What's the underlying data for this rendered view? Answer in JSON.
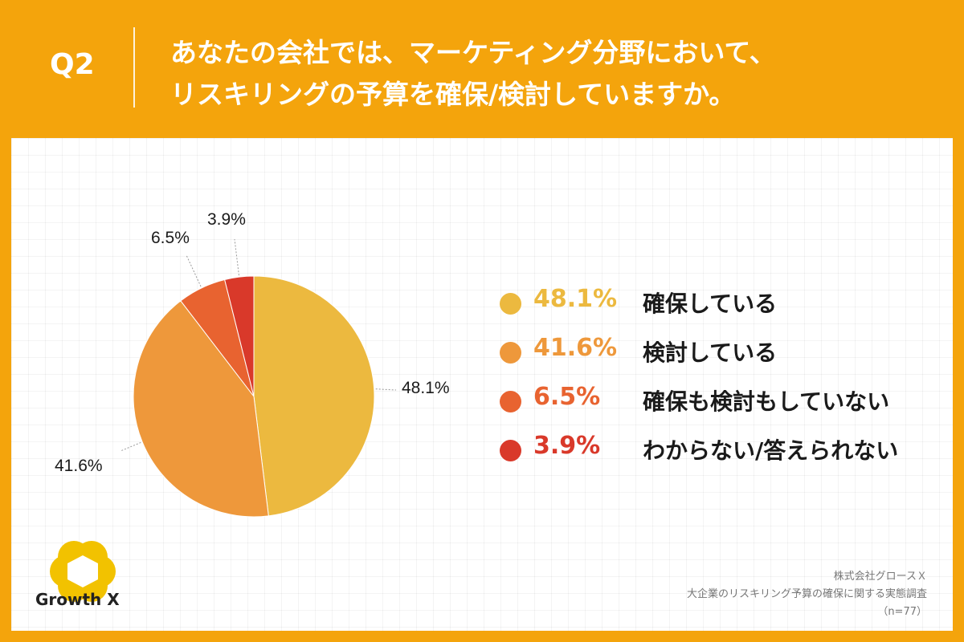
{
  "header": {
    "question_label": "Q2",
    "title_line1": "あなたの会社では、マーケティング分野において、",
    "title_line2": "リスキリングの予算を確保/検討していますか。"
  },
  "colors": {
    "background": "#f4a40c",
    "slice1": "#ecb93f",
    "slice2": "#ee983b",
    "slice3": "#e86330",
    "slice4": "#d9392a"
  },
  "legend": [
    {
      "pct": "48.1%",
      "label": "確保している",
      "color": "#ecb93f"
    },
    {
      "pct": "41.6%",
      "label": "検討している",
      "color": "#ee983b"
    },
    {
      "pct": "6.5%",
      "label": "確保も検討もしていない",
      "color": "#e86330"
    },
    {
      "pct": "3.9%",
      "label": "わからない/答えられない",
      "color": "#d9392a"
    }
  ],
  "chart_data": {
    "type": "pie",
    "title": "あなたの会社では、マーケティング分野において、リスキリングの予算を確保/検討していますか。",
    "categories": [
      "確保している",
      "検討している",
      "確保も検討もしていない",
      "わからない/答えられない"
    ],
    "values": [
      48.1,
      41.6,
      6.5,
      3.9
    ],
    "data_labels": [
      "48.1%",
      "41.6%",
      "6.5%",
      "3.9%"
    ],
    "colors": [
      "#ecb93f",
      "#ee983b",
      "#e86330",
      "#d9392a"
    ],
    "start": "12 o'clock",
    "direction": "clockwise",
    "legend_position": "right"
  },
  "footer": {
    "company": "株式会社グロースＸ",
    "survey": "大企業のリスキリング予算の確保に関する実態調査",
    "sample": "（n=77）"
  },
  "logo": {
    "text": "Growth X",
    "icon": "hexagon-logo-icon"
  }
}
